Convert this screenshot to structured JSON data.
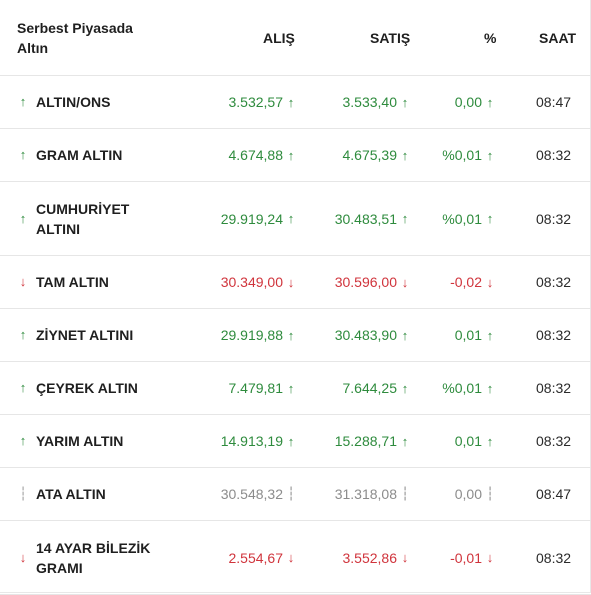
{
  "header": {
    "title": "Serbest Piyasada Altın",
    "col_buy": "ALIŞ",
    "col_sell": "SATIŞ",
    "col_pct": "%",
    "col_time": "SAAT"
  },
  "colors": {
    "up": "#2e8b3d",
    "down": "#d0343c",
    "flat": "#8c8c8c"
  },
  "icons": {
    "up": "arrow-up-icon",
    "down": "arrow-down-icon",
    "flat": "neutral-dots-icon"
  },
  "rows": [
    {
      "name": "ALTIN/ONS",
      "dir": "up",
      "buy": "3.532,57",
      "sell": "3.533,40",
      "pct": "0,00",
      "time": "08:47",
      "height": "r53"
    },
    {
      "name": "GRAM ALTIN",
      "dir": "up",
      "buy": "4.674,88",
      "sell": "4.675,39",
      "pct": "%0,01",
      "time": "08:32",
      "height": "r53"
    },
    {
      "name": "CUMHURİYET ALTINI",
      "dir": "up",
      "buy": "29.919,24",
      "sell": "30.483,51",
      "pct": "%0,01",
      "time": "08:32",
      "height": "r74"
    },
    {
      "name": "TAM ALTIN",
      "dir": "down",
      "buy": "30.349,00",
      "sell": "30.596,00",
      "pct": "-0,02",
      "time": "08:32",
      "height": "r53"
    },
    {
      "name": "ZİYNET ALTINI",
      "dir": "up",
      "buy": "29.919,88",
      "sell": "30.483,90",
      "pct": "0,01",
      "time": "08:32",
      "height": "r53"
    },
    {
      "name": "ÇEYREK ALTIN",
      "dir": "up",
      "buy": "7.479,81",
      "sell": "7.644,25",
      "pct": "%0,01",
      "time": "08:32",
      "height": "r53"
    },
    {
      "name": "YARIM ALTIN",
      "dir": "up",
      "buy": "14.913,19",
      "sell": "15.288,71",
      "pct": "0,01",
      "time": "08:32",
      "height": "r53"
    },
    {
      "name": "ATA ALTIN",
      "dir": "flat",
      "buy": "30.548,32",
      "sell": "31.318,08",
      "pct": "0,00",
      "time": "08:47",
      "height": "r53"
    },
    {
      "name": "14 AYAR BİLEZİK GRAMI",
      "dir": "down",
      "buy": "2.554,67",
      "sell": "3.552,86",
      "pct": "-0,01",
      "time": "08:32",
      "height": "r74"
    }
  ]
}
